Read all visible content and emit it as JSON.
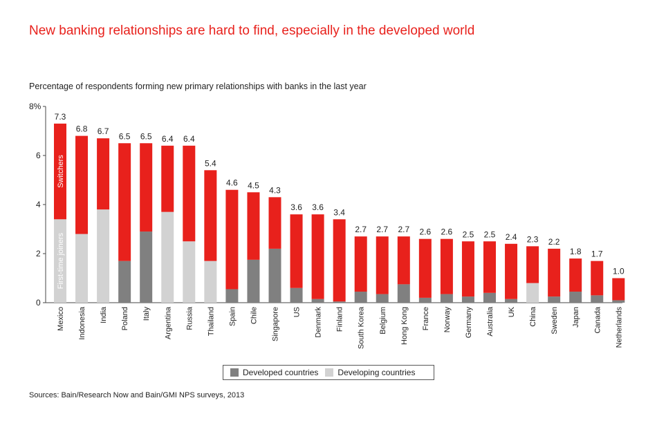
{
  "chart_data": {
    "type": "bar",
    "title": "New banking relationships are hard to find, especially in the developed world",
    "ylabel": "Percentage of respondents forming new primary relationships with banks in the last year",
    "ylim": [
      0,
      8
    ],
    "yticks": [
      "0",
      "2",
      "4",
      "6",
      "8%"
    ],
    "categories": [
      "Mexico",
      "Indonesia",
      "India",
      "Poland",
      "Italy",
      "Argentina",
      "Russia",
      "Thailand",
      "Spain",
      "Chile",
      "Singapore",
      "US",
      "Denmark",
      "Finland",
      "South Korea",
      "Belgium",
      "Hong Kong",
      "France",
      "Norway",
      "Germany",
      "Australia",
      "UK",
      "China",
      "Sweden",
      "Japan",
      "Canada",
      "Netherlands"
    ],
    "totals": [
      7.3,
      6.8,
      6.7,
      6.5,
      6.5,
      6.4,
      6.4,
      5.4,
      4.6,
      4.5,
      4.3,
      3.6,
      3.6,
      3.4,
      2.7,
      2.7,
      2.7,
      2.6,
      2.6,
      2.5,
      2.5,
      2.4,
      2.3,
      2.2,
      1.8,
      1.7,
      1.0
    ],
    "total_labels": [
      "7.3",
      "6.8",
      "6.7",
      "6.5",
      "6.5",
      "6.4",
      "6.4",
      "5.4",
      "4.6",
      "4.5",
      "4.3",
      "3.6",
      "3.6",
      "3.4",
      "2.7",
      "2.7",
      "2.7",
      "2.6",
      "2.6",
      "2.5",
      "2.5",
      "2.4",
      "2.3",
      "2.2",
      "1.8",
      "1.7",
      "1.0"
    ],
    "group": [
      "developing",
      "developing",
      "developing",
      "developed",
      "developed",
      "developing",
      "developing",
      "developing",
      "developed",
      "developed",
      "developed",
      "developed",
      "developed",
      "developed",
      "developed",
      "developed",
      "developed",
      "developed",
      "developed",
      "developed",
      "developed",
      "developed",
      "developing",
      "developed",
      "developed",
      "developed",
      "developed"
    ],
    "series": [
      {
        "name": "First-time joiners",
        "values": [
          3.4,
          2.8,
          3.8,
          1.7,
          2.9,
          3.7,
          2.5,
          1.7,
          0.55,
          1.75,
          2.2,
          0.6,
          0.15,
          0.05,
          0.45,
          0.35,
          0.75,
          0.2,
          0.35,
          0.25,
          0.4,
          0.15,
          0.8,
          0.25,
          0.45,
          0.3,
          0.1
        ]
      },
      {
        "name": "Switchers",
        "values": [
          3.9,
          4.0,
          2.9,
          4.8,
          3.6,
          2.7,
          3.9,
          3.7,
          4.05,
          2.75,
          2.1,
          3.0,
          3.45,
          3.35,
          2.25,
          2.35,
          1.95,
          2.4,
          2.25,
          2.25,
          2.1,
          2.25,
          1.5,
          1.95,
          1.35,
          1.4,
          0.9
        ]
      }
    ],
    "legend": [
      {
        "label": "Developed countries",
        "color": "#808080"
      },
      {
        "label": "Developing countries",
        "color": "#d2d2d2"
      }
    ],
    "legend_position": "bottom-center",
    "colors": {
      "switchers": "#e8211c",
      "developed": "#808080",
      "developing": "#d2d2d2"
    },
    "grid": false
  },
  "source": "Sources: Bain/Research Now and Bain/GMI NPS surveys, 2013"
}
